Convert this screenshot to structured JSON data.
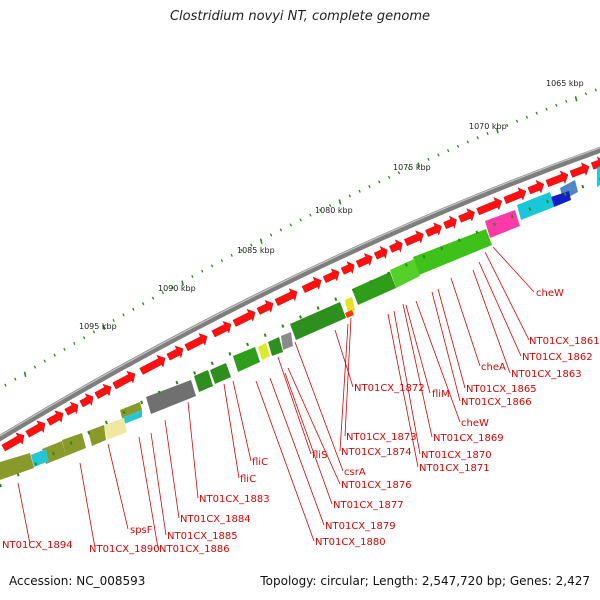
{
  "title": "Clostridium novyi NT, complete genome",
  "footer": {
    "accession": "Accession: NC_008593",
    "info": "Topology: circular; Length: 2,547,720 bp; Genes: 2,427"
  },
  "colors": {
    "forward_genes": "#ff1010",
    "backbone": "#8a8a8a",
    "tick": "#2a8a1a",
    "label": "#e00000"
  },
  "kbp_labels": [
    "1065 kbp",
    "1070 kbp",
    "1075 kbp",
    "1080 kbp",
    "1085 kbp",
    "1090 kbp",
    "1095 kbp"
  ],
  "gene_labels": [
    "cheW",
    "NT01CX_1861",
    "NT01CX_1862",
    "NT01CX_1863",
    "cheA",
    "NT01CX_1865",
    "NT01CX_1866",
    "fliM",
    "cheW",
    "NT01CX_1869",
    "NT01CX_1870",
    "NT01CX_1871",
    "NT01CX_1872",
    "NT01CX_1873",
    "NT01CX_1874",
    "fliS",
    "csrA",
    "NT01CX_1876",
    "NT01CX_1877",
    "NT01CX_1879",
    "NT01CX_1880",
    "fliC",
    "fliC",
    "NT01CX_1883",
    "NT01CX_1884",
    "NT01CX_1885",
    "NT01CX_1886",
    "spsF",
    "NT01CX_1890",
    "NT01CX_1894"
  ]
}
